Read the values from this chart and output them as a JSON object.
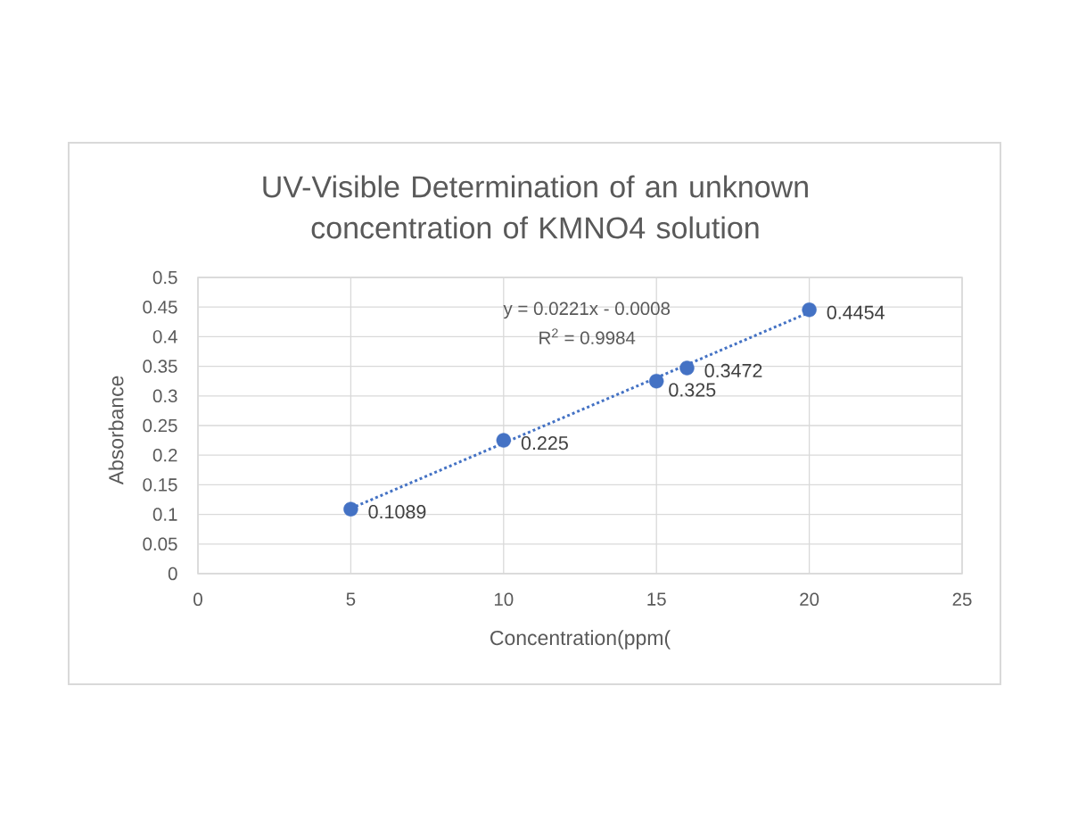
{
  "chart_data": {
    "type": "scatter",
    "title": "UV-Visible Determination of an unknown concentration of KMNO4 solution",
    "xlabel": "Concentration(ppm(",
    "ylabel": "Absorbance",
    "annotations": [
      "y = 0.0221x - 0.0008",
      "R$^{2}$ = 0.9984"
    ],
    "xlim": [
      0,
      25
    ],
    "ylim": [
      0,
      0.5
    ],
    "xticks": [
      0,
      5,
      10,
      15,
      20,
      25
    ],
    "yticks": [
      0,
      0.05,
      0.1,
      0.15,
      0.2,
      0.25,
      0.3,
      0.35,
      0.4,
      0.45,
      0.5
    ],
    "grid": true,
    "series": [
      {
        "color": "#4472c4",
        "marker": "circle",
        "data_labels": true,
        "x": [
          5,
          10,
          15,
          16,
          20
        ],
        "values": [
          0.1089,
          0.225,
          0.325,
          0.3472,
          0.4454
        ]
      },
      {
        "type": "line",
        "color": "#4472c4",
        "line_style": "dotted",
        "x": [
          5,
          20
        ],
        "values": [
          0.11,
          0.441
        ]
      }
    ]
  }
}
